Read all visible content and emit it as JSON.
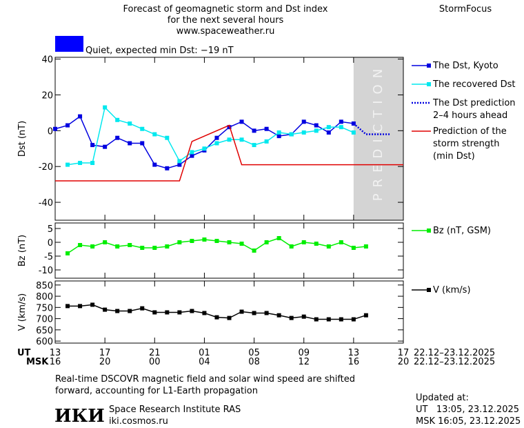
{
  "header": {
    "title_lines": [
      "Forecast of geomagnetic storm and Dst index",
      "for the next several hours",
      "www.spaceweather.ru"
    ],
    "brand": "StormFocus",
    "status": {
      "text": "Quiet, expected min Dst: −19 nT",
      "color": "#0000ff"
    }
  },
  "time_axis": {
    "xlim": [
      0,
      28
    ],
    "date": "22.12–23.12.2025",
    "ut": {
      "label": "UT",
      "ticks": [
        {
          "value": 0,
          "label": "13"
        },
        {
          "value": 4,
          "label": "17"
        },
        {
          "value": 8,
          "label": "21"
        },
        {
          "value": 12,
          "label": "01"
        },
        {
          "value": 16,
          "label": "05"
        },
        {
          "value": 20,
          "label": "09"
        },
        {
          "value": 24,
          "label": "13"
        },
        {
          "value": 28,
          "label": "17"
        }
      ]
    },
    "msk": {
      "label": "MSK",
      "ticks": [
        {
          "value": 0,
          "label": "16"
        },
        {
          "value": 4,
          "label": "20"
        },
        {
          "value": 8,
          "label": "00"
        },
        {
          "value": 12,
          "label": "04"
        },
        {
          "value": 16,
          "label": "08"
        },
        {
          "value": 20,
          "label": "12"
        },
        {
          "value": 24,
          "label": "16"
        },
        {
          "value": 28,
          "label": "20"
        }
      ]
    }
  },
  "chart_data": [
    {
      "type": "line",
      "y_label": "Dst (nT)",
      "ylim": [
        -50,
        41
      ],
      "yticks": [
        -40,
        -20,
        0,
        20,
        40
      ],
      "legend": "right",
      "prediction": {
        "xlim": [
          24,
          28
        ],
        "label": "PREDICTION",
        "color": "#d4d4d4"
      },
      "series": [
        {
          "name": "The Dst, Kyoto",
          "color": "#0000e0",
          "marker": "square",
          "dash": false,
          "x": [
            0,
            1,
            2,
            3,
            4,
            5,
            6,
            7,
            8,
            9,
            10,
            11,
            12,
            13,
            14,
            15,
            16,
            17,
            18,
            19,
            20,
            21,
            22,
            23,
            24
          ],
          "values": [
            1,
            3,
            8,
            -8,
            -9,
            -4,
            -7,
            -7,
            -19,
            -21,
            -19,
            -14,
            -11,
            -4,
            2,
            5,
            0,
            1,
            -3,
            -2,
            5,
            3,
            -1,
            5,
            4
          ]
        },
        {
          "name": "The recovered Dst",
          "color": "#00e8ee",
          "marker": "square",
          "dash": false,
          "x": [
            1,
            2,
            3,
            4,
            5,
            6,
            7,
            8,
            9,
            10,
            11,
            12,
            13,
            14,
            15,
            16,
            17,
            18,
            19,
            20,
            21,
            22,
            23,
            24
          ],
          "values": [
            -19,
            -18,
            -18,
            13,
            6,
            4,
            1,
            -2,
            -4,
            -17,
            -12,
            -10,
            -7,
            -5,
            -5,
            -8,
            -6,
            -1,
            -2,
            -1,
            0,
            2,
            2,
            -1
          ]
        },
        {
          "name": "The Dst prediction\n2–4 hours ahead",
          "color": "#0000e0",
          "marker": "none",
          "dash": true,
          "x": [
            24,
            25,
            26,
            27
          ],
          "values": [
            4,
            -2,
            -2,
            -2
          ]
        },
        {
          "name": "Prediction of the\nstorm strength\n(min Dst)",
          "color": "#e00000",
          "marker": "none",
          "dash": false,
          "x": [
            0,
            10,
            11,
            14,
            15,
            28
          ],
          "values": [
            -28,
            -28,
            -6,
            3,
            -19,
            -19
          ]
        }
      ]
    },
    {
      "type": "line",
      "y_label": "Bz (nT)",
      "ylim": [
        -13,
        7
      ],
      "yticks": [
        -10,
        -5,
        0,
        5
      ],
      "legend": "right",
      "series": [
        {
          "name": "Bz (nT, GSM)",
          "color": "#00ee00",
          "marker": "square",
          "dash": false,
          "x": [
            1,
            2,
            3,
            4,
            5,
            6,
            7,
            8,
            9,
            10,
            11,
            12,
            13,
            14,
            15,
            16,
            17,
            18,
            19,
            20,
            21,
            22,
            23,
            24,
            25
          ],
          "values": [
            -4,
            -1,
            -1.5,
            0,
            -1.5,
            -1,
            -2,
            -2,
            -1.5,
            0,
            0.5,
            1,
            0.5,
            0,
            -0.5,
            -3,
            0,
            1.5,
            -1.5,
            0,
            -0.5,
            -1.5,
            0,
            -2,
            -1.5
          ]
        }
      ]
    },
    {
      "type": "line",
      "y_label": "V (km/s)",
      "ylim": [
        591,
        868
      ],
      "yticks": [
        600,
        650,
        700,
        750,
        800,
        850
      ],
      "legend": "right",
      "series": [
        {
          "name": "V (km/s)",
          "color": "#000000",
          "marker": "square",
          "dash": false,
          "x": [
            1,
            2,
            3,
            4,
            5,
            6,
            7,
            8,
            9,
            10,
            11,
            12,
            13,
            14,
            15,
            16,
            17,
            18,
            19,
            20,
            21,
            22,
            23,
            24,
            25
          ],
          "values": [
            756,
            756,
            762,
            740,
            734,
            734,
            746,
            728,
            728,
            728,
            734,
            725,
            706,
            703,
            731,
            725,
            725,
            715,
            703,
            709,
            697,
            697,
            697,
            697,
            715
          ]
        }
      ]
    }
  ],
  "footer": {
    "note_lines": [
      "Real-time DSCOVR magnetic field and solar wind speed are shifted",
      "forward, accounting for L1-Earth propagation"
    ],
    "logo": "ИКИ",
    "institute": "Space Research Institute RAS",
    "site": "iki.cosmos.ru",
    "updated_label": "Updated at:",
    "updated_ut": "UT   13:05, 23.12.2025",
    "updated_msk": "MSK 16:05, 23.12.2025"
  }
}
